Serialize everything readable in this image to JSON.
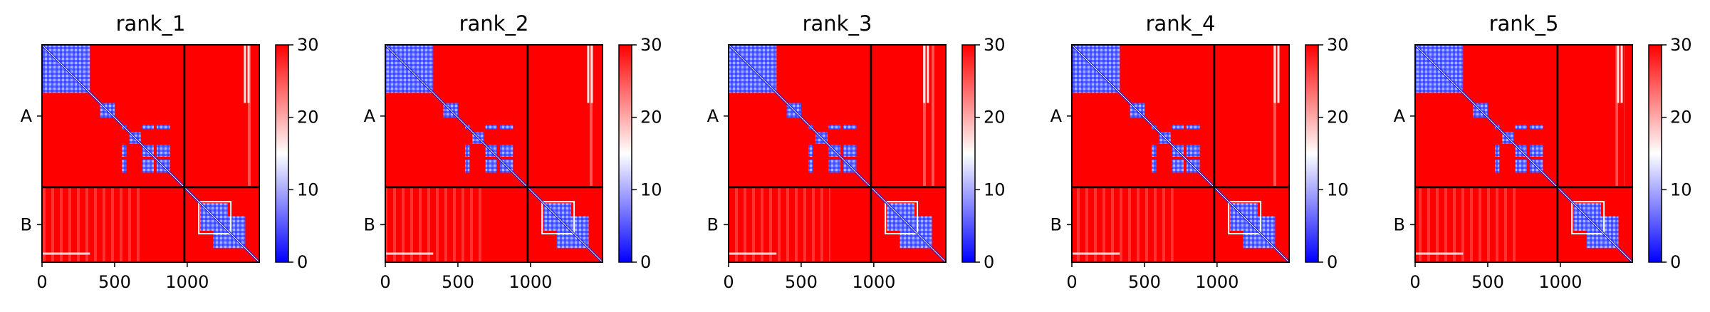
{
  "chart_data": [
    {
      "type": "heatmap",
      "title": "rank_1",
      "x_ticks": [
        0,
        500,
        1000
      ],
      "xlim": [
        0,
        1496
      ],
      "chain_labels": [
        "A",
        "B"
      ],
      "chain_boundary": 980,
      "colorbar": {
        "min": 0,
        "max": 30,
        "ticks": [
          0,
          10,
          20,
          30
        ],
        "colors": [
          "#0000ff",
          "#ffffff",
          "#ff0000"
        ]
      },
      "low_blocks": [
        [
          0,
          330
        ],
        [
          400,
          500
        ],
        [
          550,
          580
        ],
        [
          600,
          680
        ],
        [
          690,
          770
        ],
        [
          790,
          880
        ],
        [
          1090,
          1280
        ],
        [
          1180,
          1400
        ]
      ],
      "side_stripes": [
        [
          1380,
          1440
        ]
      ]
    },
    {
      "type": "heatmap",
      "title": "rank_2",
      "x_ticks": [
        0,
        500,
        1000
      ],
      "xlim": [
        0,
        1496
      ],
      "chain_labels": [
        "A",
        "B"
      ],
      "chain_boundary": 980,
      "colorbar": {
        "min": 0,
        "max": 30,
        "ticks": [
          0,
          10,
          20,
          30
        ],
        "colors": [
          "#0000ff",
          "#ffffff",
          "#ff0000"
        ]
      },
      "low_blocks": [
        [
          0,
          330
        ],
        [
          400,
          500
        ],
        [
          550,
          580
        ],
        [
          600,
          680
        ],
        [
          690,
          770
        ],
        [
          790,
          880
        ],
        [
          1090,
          1280
        ],
        [
          1180,
          1400
        ]
      ],
      "side_stripes": [
        [
          1380,
          1440
        ]
      ]
    },
    {
      "type": "heatmap",
      "title": "rank_3",
      "x_ticks": [
        0,
        500,
        1000
      ],
      "xlim": [
        0,
        1496
      ],
      "chain_labels": [
        "A",
        "B"
      ],
      "chain_boundary": 980,
      "colorbar": {
        "min": 0,
        "max": 30,
        "ticks": [
          0,
          10,
          20,
          30
        ],
        "colors": [
          "#0000ff",
          "#ffffff",
          "#ff0000"
        ]
      },
      "low_blocks": [
        [
          0,
          330
        ],
        [
          400,
          500
        ],
        [
          550,
          580
        ],
        [
          600,
          680
        ],
        [
          690,
          770
        ],
        [
          790,
          880
        ],
        [
          1090,
          1280
        ],
        [
          1180,
          1400
        ]
      ],
      "side_stripes": [
        [
          1330,
          1420
        ]
      ]
    },
    {
      "type": "heatmap",
      "title": "rank_4",
      "x_ticks": [
        0,
        500,
        1000
      ],
      "xlim": [
        0,
        1496
      ],
      "chain_labels": [
        "A",
        "B"
      ],
      "chain_boundary": 980,
      "colorbar": {
        "min": 0,
        "max": 30,
        "ticks": [
          0,
          10,
          20,
          30
        ],
        "colors": [
          "#0000ff",
          "#ffffff",
          "#ff0000"
        ]
      },
      "low_blocks": [
        [
          0,
          330
        ],
        [
          400,
          500
        ],
        [
          550,
          580
        ],
        [
          600,
          680
        ],
        [
          690,
          770
        ],
        [
          790,
          880
        ],
        [
          1090,
          1280
        ],
        [
          1180,
          1400
        ]
      ],
      "side_stripes": [
        [
          1380,
          1440
        ]
      ]
    },
    {
      "type": "heatmap",
      "title": "rank_5",
      "x_ticks": [
        0,
        500,
        1000
      ],
      "xlim": [
        0,
        1496
      ],
      "chain_labels": [
        "A",
        "B"
      ],
      "chain_boundary": 980,
      "colorbar": {
        "min": 0,
        "max": 30,
        "ticks": [
          0,
          10,
          20,
          30
        ],
        "colors": [
          "#0000ff",
          "#ffffff",
          "#ff0000"
        ]
      },
      "low_blocks": [
        [
          0,
          330
        ],
        [
          400,
          500
        ],
        [
          550,
          580
        ],
        [
          600,
          680
        ],
        [
          690,
          770
        ],
        [
          790,
          880
        ],
        [
          1090,
          1280
        ],
        [
          1180,
          1400
        ]
      ],
      "side_stripes": [
        [
          1380,
          1440
        ]
      ]
    }
  ]
}
